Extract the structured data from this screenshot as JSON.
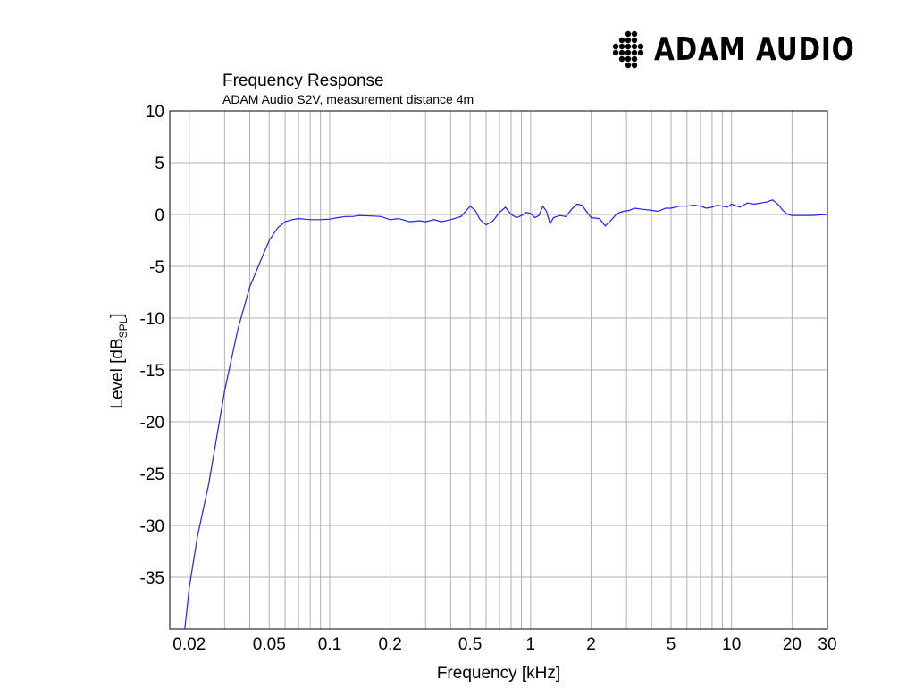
{
  "logo": {
    "text": "ADAM AUDIO",
    "icon": "adam-audio-dots-logo-icon"
  },
  "chart_data": {
    "type": "line",
    "title": "Frequency Response",
    "subtitle": "ADAM Audio S2V, measurement distance 4m",
    "xlabel": "Frequency [kHz]",
    "ylabel": {
      "main": "Level [dB",
      "sub": "SPL",
      "close": "]"
    },
    "xscale": "log",
    "xlim": [
      0.016,
      30
    ],
    "ylim": [
      -40,
      10
    ],
    "x_ticks": [
      {
        "value": 0.02,
        "label": "0.02"
      },
      {
        "value": 0.05,
        "label": "0.05"
      },
      {
        "value": 0.1,
        "label": "0.1"
      },
      {
        "value": 0.2,
        "label": "0.2"
      },
      {
        "value": 0.5,
        "label": "0.5"
      },
      {
        "value": 1,
        "label": "1"
      },
      {
        "value": 2,
        "label": "2"
      },
      {
        "value": 5,
        "label": "5"
      },
      {
        "value": 10,
        "label": "10"
      },
      {
        "value": 20,
        "label": "20"
      },
      {
        "value": 30,
        "label": "30"
      }
    ],
    "y_ticks": [
      {
        "value": 10,
        "label": "10"
      },
      {
        "value": 5,
        "label": "5"
      },
      {
        "value": 0,
        "label": "0"
      },
      {
        "value": -5,
        "label": "-5"
      },
      {
        "value": -10,
        "label": "-10"
      },
      {
        "value": -15,
        "label": "-15"
      },
      {
        "value": -20,
        "label": "-20"
      },
      {
        "value": -25,
        "label": "-25"
      },
      {
        "value": -30,
        "label": "-30"
      },
      {
        "value": -35,
        "label": "-35"
      }
    ],
    "grid": true,
    "line_color": "#1f1fff",
    "grid_color": "#b0b0b0",
    "series": [
      {
        "x": [
          0.019,
          0.02,
          0.022,
          0.025,
          0.03,
          0.035,
          0.04,
          0.045,
          0.05,
          0.055,
          0.06,
          0.065,
          0.07,
          0.08,
          0.09,
          0.1,
          0.11,
          0.12,
          0.13,
          0.14,
          0.16,
          0.18,
          0.2,
          0.22,
          0.25,
          0.28,
          0.3,
          0.33,
          0.36,
          0.4,
          0.45,
          0.5,
          0.53,
          0.56,
          0.6,
          0.65,
          0.7,
          0.75,
          0.8,
          0.85,
          0.9,
          0.95,
          1.0,
          1.05,
          1.1,
          1.15,
          1.2,
          1.25,
          1.3,
          1.4,
          1.5,
          1.6,
          1.7,
          1.8,
          2.0,
          2.2,
          2.35,
          2.5,
          2.7,
          2.9,
          3.1,
          3.3,
          3.6,
          4.0,
          4.3,
          4.7,
          5.0,
          5.5,
          6.0,
          6.5,
          7.0,
          7.5,
          8.0,
          8.5,
          9.0,
          9.5,
          10.0,
          11.0,
          12.0,
          13.0,
          14.0,
          15.0,
          16.0,
          17.0,
          18.0,
          19.0,
          20.0,
          22.0,
          25.0,
          30.0
        ],
        "y": [
          -40,
          -36,
          -31,
          -26,
          -17,
          -11,
          -7,
          -4.6,
          -2.5,
          -1.3,
          -0.7,
          -0.5,
          -0.4,
          -0.5,
          -0.5,
          -0.45,
          -0.3,
          -0.2,
          -0.2,
          -0.1,
          -0.15,
          -0.2,
          -0.5,
          -0.4,
          -0.7,
          -0.6,
          -0.7,
          -0.5,
          -0.7,
          -0.5,
          -0.2,
          0.8,
          0.4,
          -0.5,
          -1.0,
          -0.6,
          0.2,
          0.7,
          0.0,
          -0.3,
          -0.1,
          0.2,
          0.1,
          -0.3,
          -0.1,
          0.8,
          0.3,
          -0.9,
          -0.3,
          -0.1,
          -0.2,
          0.5,
          1.0,
          0.9,
          -0.3,
          -0.4,
          -1.1,
          -0.6,
          0.1,
          0.3,
          0.4,
          0.6,
          0.5,
          0.4,
          0.3,
          0.6,
          0.6,
          0.8,
          0.8,
          0.9,
          0.8,
          0.6,
          0.7,
          0.9,
          0.8,
          0.7,
          1.0,
          0.7,
          1.1,
          1.0,
          1.1,
          1.2,
          1.4,
          1.0,
          0.4,
          0.0,
          -0.1,
          -0.1,
          -0.1,
          0.0
        ]
      }
    ]
  }
}
